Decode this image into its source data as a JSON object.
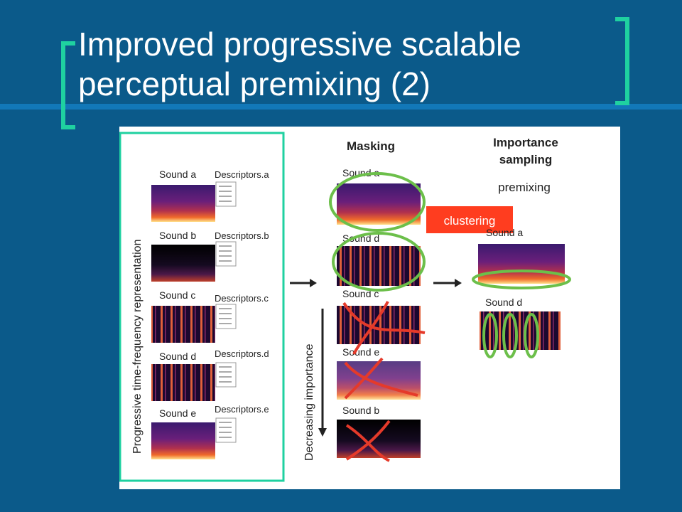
{
  "slide": {
    "title_line1": "Improved progressive scalable",
    "title_line2": "perceptual premixing (2)"
  },
  "figure": {
    "vertical_label_left": "Progressive time-frequency representation",
    "vertical_label_mid": "Decreasing importance",
    "left_column": [
      {
        "sound": "Sound a",
        "descriptor": "Descriptors.a"
      },
      {
        "sound": "Sound b",
        "descriptor": "Descriptors.b"
      },
      {
        "sound": "Sound c",
        "descriptor": "Descriptors.c"
      },
      {
        "sound": "Sound d",
        "descriptor": "Descriptors.d"
      },
      {
        "sound": "Sound e",
        "descriptor": "Descriptors.e"
      }
    ],
    "descriptor_lines": [
      "Descriptor 1",
      "Descriptor 2",
      "Descriptor 3",
      "Descriptor 4"
    ],
    "masking_heading": "Masking",
    "masking_column": [
      "Sound a",
      "Sound d",
      "Sound c",
      "Sound e",
      "Sound b"
    ],
    "importance_heading_line1": "Importance",
    "importance_heading_line2": "sampling",
    "premixing_label": "premixing",
    "clustering_label": "clustering",
    "importance_column": [
      "Sound a",
      "Sound d"
    ]
  },
  "colors": {
    "background": "#0b5a8a",
    "accent_bracket": "#1fd1a0",
    "circle_green": "#6cbf4a",
    "cross_red": "#e53a2a",
    "clustering_tag": "#ff3d1f"
  }
}
